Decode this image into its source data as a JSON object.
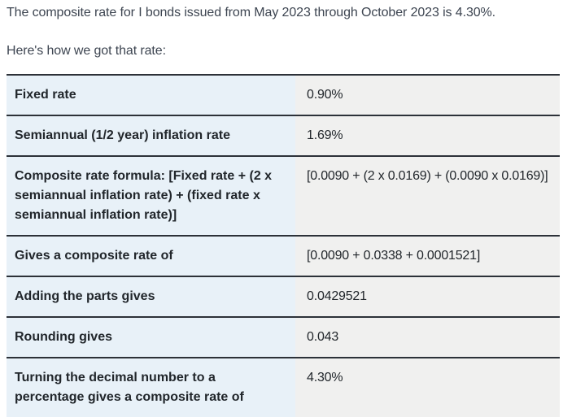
{
  "intro": {
    "summary": "The composite rate for I bonds issued from May 2023 through October 2023 is 4.30%.",
    "lead_in": "Here's how we got that rate:"
  },
  "rate_table": {
    "rows": [
      {
        "label": "Fixed rate",
        "value": "0.90%"
      },
      {
        "label": "Semiannual (1/2 year) inflation rate",
        "value": "1.69%"
      },
      {
        "label": "Composite rate formula: [Fixed rate + (2 x semiannual inflation rate) + (fixed rate x semiannual inflation rate)]",
        "value": "[0.0090 + (2 x 0.0169) + (0.0090 x 0.0169)]"
      },
      {
        "label": "Gives a composite rate of",
        "value": "[0.0090 + 0.0338 + 0.0001521]"
      },
      {
        "label": "Adding the parts gives",
        "value": "0.0429521"
      },
      {
        "label": "Rounding gives",
        "value": "0.043"
      },
      {
        "label": "Turning the decimal number to a percentage gives a composite rate of",
        "value": "4.30%"
      }
    ]
  },
  "colors": {
    "label_column_bg": "#e8f1f8",
    "value_column_bg": "#f0f0ef",
    "row_border": "#2c3138",
    "table_text": "#21262b",
    "body_text": "#3d4551",
    "page_bg": "#ffffff"
  }
}
